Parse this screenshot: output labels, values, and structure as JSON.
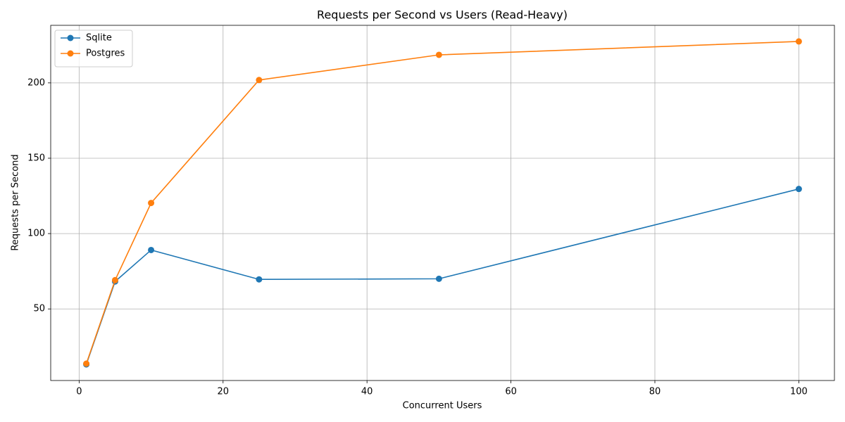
{
  "chart_data": {
    "type": "line",
    "title": "Requests per Second vs Users (Read-Heavy)",
    "x_label": "Concurrent Users",
    "y_label": "Requests per Second",
    "x": [
      1,
      5,
      10,
      25,
      50,
      100
    ],
    "series": [
      {
        "name": "Sqlite",
        "color": "#1f77b4",
        "values": [
          13.2,
          68.2,
          89.1,
          69.6,
          70.0,
          129.6
        ]
      },
      {
        "name": "Postgres",
        "color": "#ff7f0e",
        "values": [
          13.7,
          69.1,
          120.3,
          201.9,
          218.6,
          227.5
        ]
      }
    ],
    "xlim": [
      -3.95,
      104.95
    ],
    "ylim": [
      2.5,
      238.2
    ],
    "xticks": [
      0,
      20,
      40,
      60,
      80,
      100
    ],
    "yticks": [
      50,
      100,
      150,
      200
    ],
    "grid": true,
    "legend": "upper-left"
  }
}
